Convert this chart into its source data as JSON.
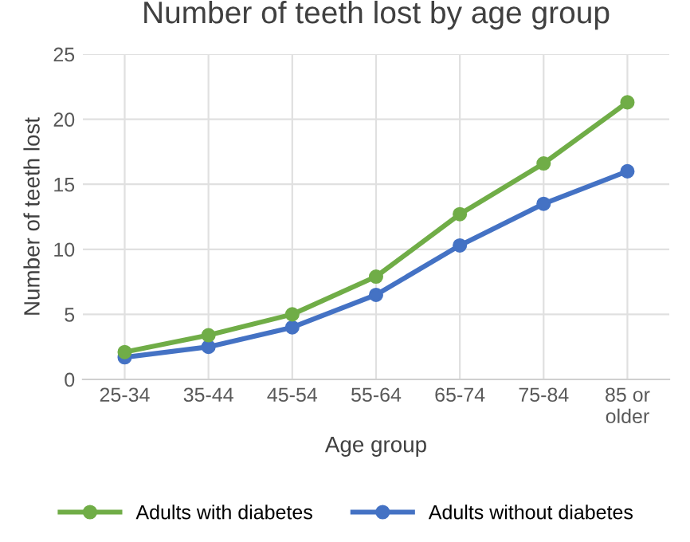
{
  "chart_data": {
    "type": "line",
    "title": "Number of teeth lost by age group",
    "xlabel": "Age group",
    "ylabel": "Number of teeth lost",
    "categories": [
      "25-34",
      "35-44",
      "45-54",
      "55-64",
      "65-74",
      "75-84",
      "85 or\nolder"
    ],
    "series": [
      {
        "name": "Adults with diabetes",
        "color": "#70ad47",
        "values": [
          2.1,
          3.4,
          5.0,
          7.9,
          12.7,
          16.6,
          21.3
        ]
      },
      {
        "name": "Adults without diabetes",
        "color": "#4472c4",
        "values": [
          1.7,
          2.5,
          4.0,
          6.5,
          10.3,
          13.5,
          16.0
        ]
      }
    ],
    "ylim": [
      0,
      25
    ],
    "yticks": [
      0,
      5,
      10,
      15,
      20,
      25
    ],
    "grid": true,
    "legend": "bottom",
    "marker": "circle",
    "line_style": "solid"
  }
}
